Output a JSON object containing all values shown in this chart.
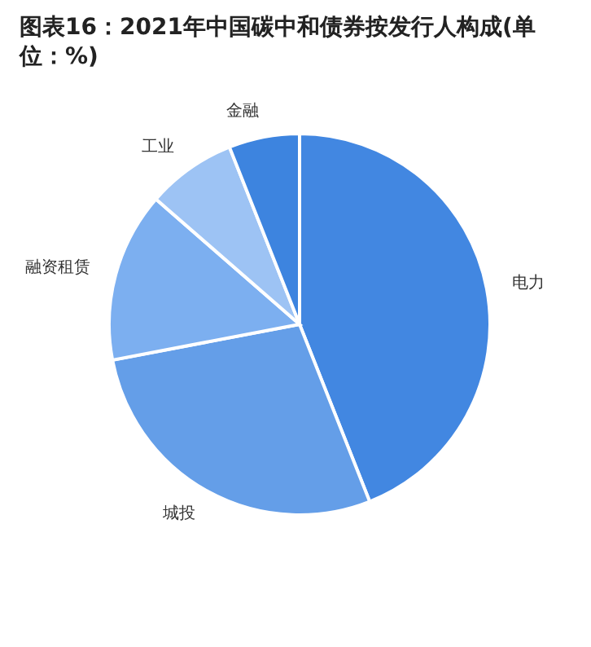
{
  "chart_data": {
    "type": "pie",
    "title": "图表16：2021年中国碳中和债券按发行人构成(单位：%)",
    "categories": [
      "电力",
      "城投",
      "融资租赁",
      "工业",
      "金融"
    ],
    "values": [
      44,
      28,
      14.4,
      7.6,
      6
    ],
    "colors": [
      "#4287e1",
      "#649ee8",
      "#7caff0",
      "#9dc3f4",
      "#3d84df"
    ],
    "legend": false
  }
}
